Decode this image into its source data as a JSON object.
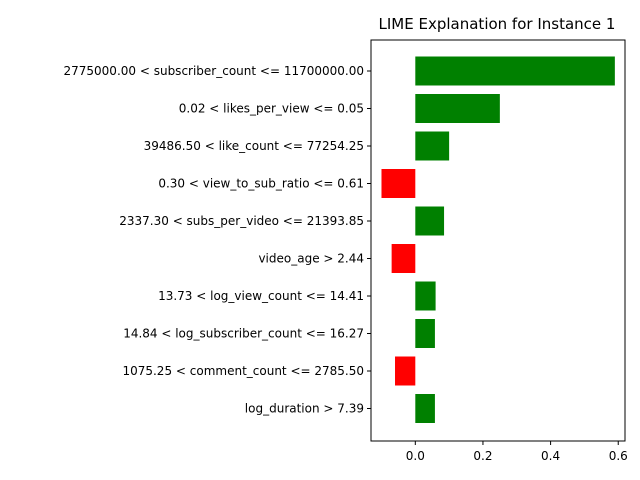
{
  "chart_data": {
    "type": "bar",
    "orientation": "horizontal",
    "title": "LIME Explanation for Instance 1",
    "xlabel": "",
    "ylabel": "",
    "xlim": [
      -0.131,
      0.62
    ],
    "xticks": [
      0.0,
      0.2,
      0.4,
      0.6
    ],
    "xtick_labels": [
      "0.0",
      "0.2",
      "0.4",
      "0.6"
    ],
    "grid": false,
    "legend": "none",
    "positive_color": "#008000",
    "negative_color": "#ff0000",
    "categories": [
      "2775000.00 < subscriber_count <= 11700000.00",
      "0.02 < likes_per_view <= 0.05",
      "39486.50 < like_count <= 77254.25",
      "0.30 < view_to_sub_ratio <= 0.61",
      "2337.30 < subs_per_video <= 21393.85",
      "video_age > 2.44",
      "13.73 < log_view_count <= 14.41",
      "14.84 < log_subscriber_count <= 16.27",
      "1075.25 < comment_count <= 2785.50",
      "log_duration > 7.39"
    ],
    "values": [
      0.59,
      0.25,
      0.1,
      -0.1,
      0.085,
      -0.07,
      0.06,
      0.058,
      -0.06,
      0.058
    ]
  }
}
